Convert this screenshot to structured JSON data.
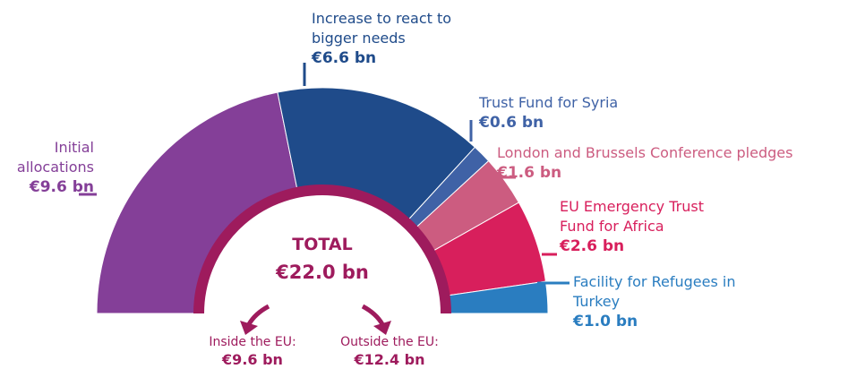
{
  "chart_data": {
    "type": "pie",
    "categories": [
      "Initial allocations",
      "Increase to react to bigger needs",
      "Trust Fund for Syria",
      "London and Brussels Conference pledges",
      "EU Emergency Trust Fund for Africa",
      "Facility for Refugees in Turkey"
    ],
    "values": [
      9.6,
      6.6,
      0.6,
      1.6,
      2.6,
      1.0
    ],
    "value_labels": [
      "€9.6 bn",
      "€6.6 bn",
      "€0.6 bn",
      "€1.6 bn",
      "€2.6 bn",
      "€1.0 bn"
    ],
    "colors": [
      "#843f98",
      "#1f4b8a",
      "#3f62a6",
      "#cc5c80",
      "#d81f5c",
      "#2a7dc0"
    ],
    "total_label": "TOTAL",
    "total": "€22.0 bn",
    "annotations": [
      {
        "text": "Inside the EU:",
        "value_label": "€9.6 bn"
      },
      {
        "text": "Outside the EU:",
        "value_label": "€12.4 bn"
      }
    ]
  }
}
